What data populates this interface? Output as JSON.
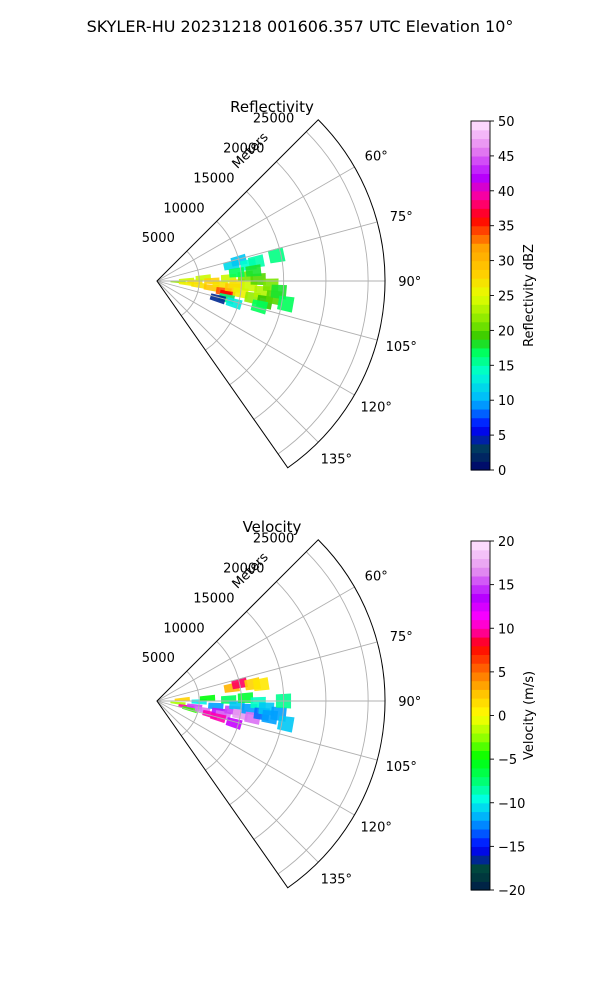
{
  "suptitle": "SKYLER-HU  20231218  001606.357 UTC Elevation 10°",
  "colors": {
    "background": "#ffffff",
    "grid": "#b0b0b0",
    "frame": "#000000"
  },
  "chart_data": [
    {
      "type": "heatmap",
      "projection": "polar-sector",
      "title": "Reflectivity",
      "radial_label": "Meters",
      "r_ticks": [
        "5000",
        "10000",
        "15000",
        "20000",
        "25000"
      ],
      "r_lim": [
        0,
        27000
      ],
      "theta_ticks": [
        "60°",
        "75°",
        "90°",
        "105°",
        "120°",
        "135°"
      ],
      "theta_lim_deg": [
        45,
        145
      ],
      "grid": true,
      "colorbar": {
        "label": "Reflectivity dBZ",
        "ticks": [
          "0",
          "5",
          "10",
          "15",
          "20",
          "25",
          "30",
          "35",
          "40",
          "45",
          "50"
        ],
        "vmin": 0,
        "vmax": 50,
        "stops": [
          [
            "#00006e",
            0
          ],
          [
            "#003c5a",
            0.06
          ],
          [
            "#0000ff",
            0.12
          ],
          [
            "#00b4ff",
            0.2
          ],
          [
            "#00ffd2",
            0.28
          ],
          [
            "#00ff5a",
            0.34
          ],
          [
            "#32c800",
            0.38
          ],
          [
            "#7ae600",
            0.42
          ],
          [
            "#e6ff00",
            0.5
          ],
          [
            "#ffd200",
            0.56
          ],
          [
            "#ffa000",
            0.64
          ],
          [
            "#ff0000",
            0.72
          ],
          [
            "#ff0096",
            0.78
          ],
          [
            "#b400ff",
            0.84
          ],
          [
            "#e682f0",
            0.92
          ],
          [
            "#ffe6ff",
            1
          ]
        ]
      },
      "echo_cells": [
        {
          "r": 2500,
          "az": 92,
          "val": 22
        },
        {
          "r": 3500,
          "az": 88,
          "val": 24
        },
        {
          "r": 3500,
          "az": 95,
          "val": 26
        },
        {
          "r": 4500,
          "az": 91,
          "val": 27
        },
        {
          "r": 5000,
          "az": 96,
          "val": 27
        },
        {
          "r": 5500,
          "az": 86,
          "val": 24
        },
        {
          "r": 6500,
          "az": 90,
          "val": 28
        },
        {
          "r": 6500,
          "az": 97,
          "val": 29
        },
        {
          "r": 7500,
          "az": 93,
          "val": 27
        },
        {
          "r": 8000,
          "az": 99,
          "val": 34
        },
        {
          "r": 8500,
          "az": 101,
          "val": 36
        },
        {
          "r": 8500,
          "az": 88,
          "val": 24
        },
        {
          "r": 9000,
          "az": 95,
          "val": 29
        },
        {
          "r": 9500,
          "az": 92,
          "val": 27
        },
        {
          "r": 10000,
          "az": 98,
          "val": 26
        },
        {
          "r": 10500,
          "az": 87,
          "val": 21
        },
        {
          "r": 11000,
          "az": 93,
          "val": 24
        },
        {
          "r": 11500,
          "az": 100,
          "val": 22
        },
        {
          "r": 12000,
          "az": 89,
          "val": 20
        },
        {
          "r": 12500,
          "az": 96,
          "val": 23
        },
        {
          "r": 13000,
          "az": 101,
          "val": 19
        },
        {
          "r": 13500,
          "az": 92,
          "val": 21
        },
        {
          "r": 14000,
          "az": 98,
          "val": 20
        },
        {
          "r": 14500,
          "az": 95,
          "val": 18
        },
        {
          "r": 9000,
          "az": 78,
          "val": 12
        },
        {
          "r": 10000,
          "az": 76,
          "val": 11
        },
        {
          "r": 11000,
          "az": 80,
          "val": 14
        },
        {
          "r": 12000,
          "az": 79,
          "val": 15
        },
        {
          "r": 9500,
          "az": 84,
          "val": 17
        },
        {
          "r": 11500,
          "az": 84,
          "val": 18
        },
        {
          "r": 8500,
          "az": 104,
          "val": 16
        },
        {
          "r": 7500,
          "az": 106,
          "val": 4
        },
        {
          "r": 9500,
          "az": 106,
          "val": 13
        },
        {
          "r": 12500,
          "az": 104,
          "val": 17
        },
        {
          "r": 14500,
          "az": 78,
          "val": 16
        },
        {
          "r": 15500,
          "az": 100,
          "val": 17
        }
      ]
    },
    {
      "type": "heatmap",
      "projection": "polar-sector",
      "title": "Velocity",
      "radial_label": "Meters",
      "r_ticks": [
        "5000",
        "10000",
        "15000",
        "20000",
        "25000"
      ],
      "r_lim": [
        0,
        27000
      ],
      "theta_ticks": [
        "60°",
        "75°",
        "90°",
        "105°",
        "120°",
        "135°"
      ],
      "theta_lim_deg": [
        45,
        145
      ],
      "grid": true,
      "colorbar": {
        "label": "Velocity (m/s)",
        "ticks": [
          "−20",
          "−15",
          "−10",
          "−5",
          "0",
          "5",
          "10",
          "15",
          "20"
        ],
        "vmin": -20,
        "vmax": 20,
        "stops": [
          [
            "#001a4a",
            0
          ],
          [
            "#004a36",
            0.06
          ],
          [
            "#0000ff",
            0.12
          ],
          [
            "#00a0ff",
            0.2
          ],
          [
            "#00ffe6",
            0.26
          ],
          [
            "#00ff64",
            0.32
          ],
          [
            "#00ff00",
            0.38
          ],
          [
            "#96ff00",
            0.44
          ],
          [
            "#ffff00",
            0.5
          ],
          [
            "#ffc800",
            0.56
          ],
          [
            "#ff7800",
            0.62
          ],
          [
            "#ff0000",
            0.7
          ],
          [
            "#ff0096",
            0.74
          ],
          [
            "#ff00ff",
            0.78
          ],
          [
            "#b400ff",
            0.84
          ],
          [
            "#e696f0",
            0.92
          ],
          [
            "#ffe6ff",
            1
          ]
        ]
      },
      "echo_cells": [
        {
          "r": 2500,
          "az": 96,
          "val": -2
        },
        {
          "r": 3000,
          "az": 86,
          "val": 2
        },
        {
          "r": 3500,
          "az": 101,
          "val": 10
        },
        {
          "r": 4000,
          "az": 104,
          "val": -4
        },
        {
          "r": 4500,
          "az": 98,
          "val": 15
        },
        {
          "r": 5000,
          "az": 91,
          "val": -10
        },
        {
          "r": 5500,
          "az": 101,
          "val": 16
        },
        {
          "r": 6000,
          "az": 87,
          "val": -5
        },
        {
          "r": 6500,
          "az": 104,
          "val": 10
        },
        {
          "r": 7000,
          "az": 95,
          "val": -12
        },
        {
          "r": 7500,
          "az": 100,
          "val": 14
        },
        {
          "r": 8000,
          "az": 102,
          "val": 16
        },
        {
          "r": 8500,
          "az": 89,
          "val": -7
        },
        {
          "r": 9000,
          "az": 97,
          "val": 15
        },
        {
          "r": 9500,
          "az": 93,
          "val": -11
        },
        {
          "r": 10000,
          "az": 99,
          "val": 17
        },
        {
          "r": 10500,
          "az": 88,
          "val": -6
        },
        {
          "r": 11000,
          "az": 95,
          "val": -12
        },
        {
          "r": 11500,
          "az": 100,
          "val": 16
        },
        {
          "r": 12000,
          "az": 91,
          "val": -9
        },
        {
          "r": 12500,
          "az": 97,
          "val": -13
        },
        {
          "r": 13000,
          "az": 94,
          "val": -11
        },
        {
          "r": 13500,
          "az": 98,
          "val": -12
        },
        {
          "r": 14500,
          "az": 96,
          "val": -12
        },
        {
          "r": 9000,
          "az": 80,
          "val": 3
        },
        {
          "r": 10000,
          "az": 78,
          "val": 9
        },
        {
          "r": 11500,
          "az": 80,
          "val": 2
        },
        {
          "r": 12500,
          "az": 81,
          "val": 1
        },
        {
          "r": 7500,
          "az": 105,
          "val": 10
        },
        {
          "r": 9500,
          "az": 106,
          "val": 13
        },
        {
          "r": 15000,
          "az": 90,
          "val": -8
        },
        {
          "r": 15500,
          "az": 100,
          "val": -11
        }
      ]
    }
  ]
}
